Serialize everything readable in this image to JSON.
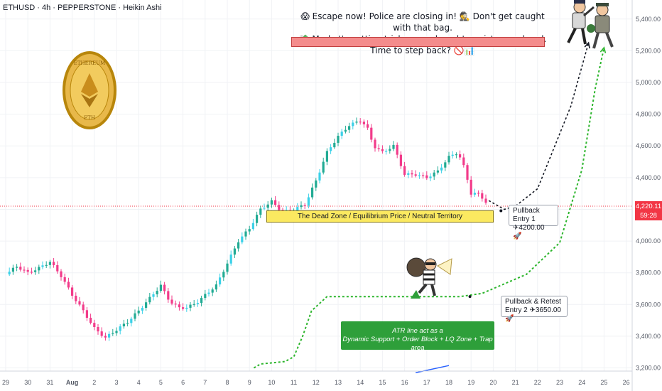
{
  "header": {
    "symbol": "ETHUSD · 4h · PEPPERSTONE · Heikin Ashi"
  },
  "annotations": {
    "headline_line1": "😱 Escape now! Police are closing in! 🕵️ Don't get caught with that bag.",
    "headline_line2": "💸 Market's getting tricky—overbought, resistance ahead. Time to step back? 🚫📊",
    "dead_zone": "The Dead Zone / Equilibrium Price / Neutral Territory",
    "entry1_line1": "Pullback Entry 1",
    "entry1_line2": "✈4200.00 🚀",
    "entry2_line1": "Pullback & Retest",
    "entry2_line2": "Entry 2 ✈3650.00 🚀",
    "atr_line1": "ATR line act as a",
    "atr_line2": "Dynamic Support + Order Block + LQ Zone + Trap area"
  },
  "price_label": {
    "value": "4,220.11",
    "countdown": "59:28"
  },
  "colors": {
    "up": "#22ab94",
    "down": "#f23b8a",
    "accent_cyan": "#3bd1e8",
    "atr": "#2cb52c",
    "current_price": "#f23645"
  },
  "icons": [
    "ethereum-coin-icon",
    "police-chase-icon",
    "thief-with-bag-icon"
  ],
  "chart_data": {
    "type": "candlestick",
    "style": "Heikin Ashi",
    "timeframe": "4h",
    "ylim": [
      3180,
      5520
    ],
    "y_ticks": [
      "5,400.00",
      "5,200.00",
      "5,000.00",
      "4,800.00",
      "4,600.00",
      "4,400.00",
      "4,200.00",
      "4,000.00",
      "3,800.00",
      "3,600.00",
      "3,400.00",
      "3,200.00"
    ],
    "y_tick_values": [
      5400,
      5200,
      5000,
      4800,
      4600,
      4400,
      4200,
      4000,
      3800,
      3600,
      3400,
      3200
    ],
    "x_ticks": [
      "29",
      "30",
      "31",
      "Aug",
      "2",
      "3",
      "4",
      "5",
      "6",
      "7",
      "8",
      "9",
      "10",
      "11",
      "12",
      "13",
      "14",
      "15",
      "16",
      "17",
      "18",
      "19",
      "20",
      "21",
      "22",
      "23",
      "24",
      "25",
      "26"
    ],
    "x_tick_days": [
      0,
      1,
      2,
      3,
      4,
      5,
      6,
      7,
      8,
      9,
      10,
      11,
      12,
      13,
      14,
      15,
      16,
      17,
      18,
      19,
      20,
      21,
      22,
      23,
      24,
      25,
      26,
      27,
      28
    ],
    "current_price": 4220.11,
    "price_path": [
      [
        0,
        3790
      ],
      [
        0.5,
        3840
      ],
      [
        1,
        3800
      ],
      [
        1.5,
        3830
      ],
      [
        2,
        3870
      ],
      [
        2.5,
        3780
      ],
      [
        3,
        3660
      ],
      [
        3.5,
        3560
      ],
      [
        4,
        3450
      ],
      [
        4.5,
        3390
      ],
      [
        5,
        3440
      ],
      [
        5.5,
        3490
      ],
      [
        6,
        3560
      ],
      [
        6.5,
        3640
      ],
      [
        7,
        3720
      ],
      [
        7.4,
        3620
      ],
      [
        7.8,
        3580
      ],
      [
        8.2,
        3580
      ],
      [
        8.7,
        3620
      ],
      [
        9,
        3660
      ],
      [
        9.5,
        3720
      ],
      [
        10,
        3860
      ],
      [
        10.5,
        4000
      ],
      [
        11,
        4080
      ],
      [
        11.5,
        4200
      ],
      [
        12,
        4250
      ],
      [
        12.5,
        4180
      ],
      [
        13,
        4200
      ],
      [
        13.5,
        4230
      ],
      [
        14,
        4380
      ],
      [
        14.5,
        4560
      ],
      [
        15,
        4660
      ],
      [
        15.5,
        4730
      ],
      [
        16,
        4760
      ],
      [
        16.3,
        4720
      ],
      [
        16.6,
        4600
      ],
      [
        17,
        4560
      ],
      [
        17.5,
        4600
      ],
      [
        18,
        4420
      ],
      [
        18.5,
        4420
      ],
      [
        19,
        4400
      ],
      [
        19.5,
        4440
      ],
      [
        20,
        4530
      ],
      [
        20.4,
        4560
      ],
      [
        20.7,
        4460
      ],
      [
        21,
        4300
      ],
      [
        21.3,
        4300
      ],
      [
        21.6,
        4260
      ],
      [
        21.8,
        4220
      ]
    ],
    "series": [
      {
        "name": "",
        "kind": "projection",
        "points": [
          [
            21.8,
            4255
          ],
          [
            22.5,
            4200
          ],
          [
            23,
            4220
          ],
          [
            24,
            4330
          ],
          [
            25.5,
            4850
          ],
          [
            26.3,
            5250
          ]
        ]
      },
      {
        "name": "",
        "kind": "atr_line",
        "points": [
          [
            11.2,
            3200
          ],
          [
            11.5,
            3225
          ],
          [
            12.6,
            3240
          ],
          [
            13,
            3270
          ],
          [
            13.4,
            3400
          ],
          [
            13.8,
            3560
          ],
          [
            14.5,
            3650
          ],
          [
            20.5,
            3650
          ],
          [
            21.5,
            3670
          ],
          [
            23.5,
            3790
          ],
          [
            25,
            3990
          ],
          [
            26,
            4450
          ],
          [
            26.6,
            4960
          ],
          [
            27,
            5220
          ]
        ]
      }
    ],
    "dead_zone_range": [
      4175,
      4210
    ],
    "entries": [
      4200.0,
      3650.0
    ]
  }
}
